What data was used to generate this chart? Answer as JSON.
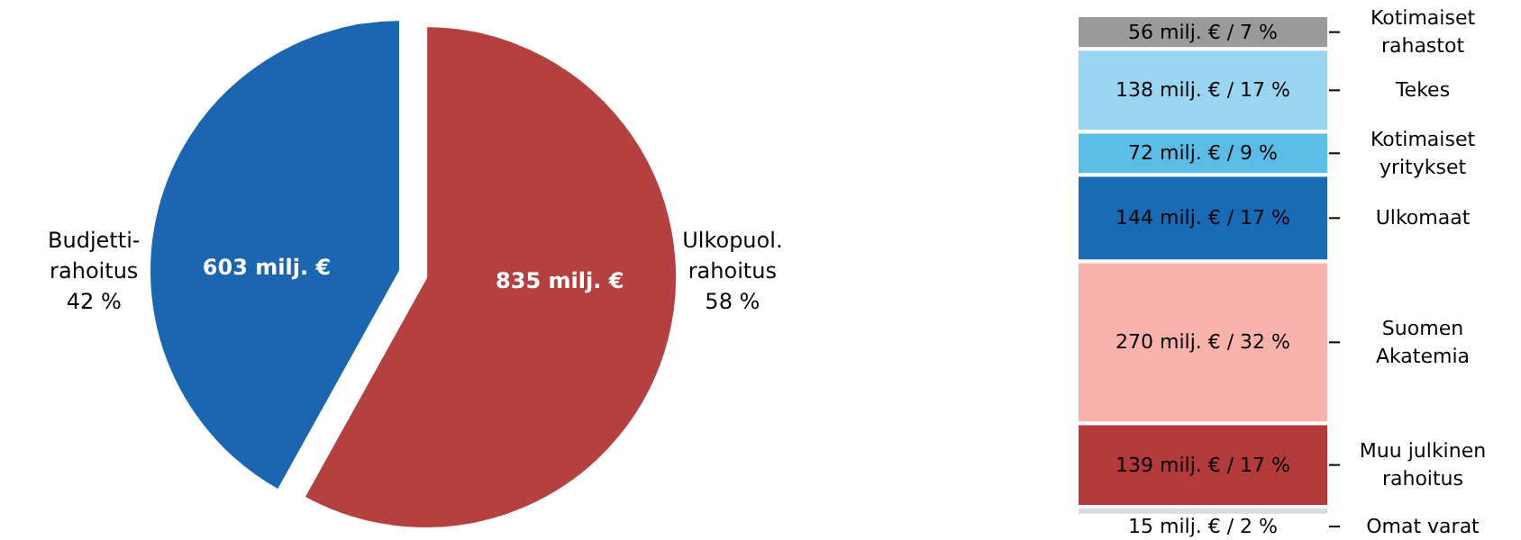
{
  "chart_data": [
    {
      "type": "pie",
      "categories": [
        "Budjetti-\nrahoitus\n42 %",
        "Ulkopuol.\nrahoitus\n58 %"
      ],
      "values": [
        603,
        835
      ],
      "colors": [
        "#1a66b0",
        "#b54040"
      ],
      "value_labels": [
        "603 milj. €",
        "835 milj. €"
      ]
    },
    {
      "type": "bar",
      "stacked": true,
      "categories": [
        null
      ],
      "series": [
        {
          "name": "Omat varat",
          "color": "#dcdcdc",
          "values": [
            15
          ],
          "value_labels": [
            "15 milj. € / 2 %"
          ]
        },
        {
          "name": "Muu julkinen\nrahoitus",
          "color": "#b23a3a",
          "values": [
            139
          ],
          "value_labels": [
            "139 milj. € / 17 %"
          ]
        },
        {
          "name": "Suomen\nAkatemia",
          "color": "#f8b2ab",
          "values": [
            270
          ],
          "value_labels": [
            "270 milj. € / 32 %"
          ]
        },
        {
          "name": "Ulkomaat",
          "color": "#1a6bb5",
          "values": [
            144
          ],
          "value_labels": [
            "144 milj. € / 17 %"
          ]
        },
        {
          "name": "Kotimaiset\nyritykset",
          "color": "#5bbde6",
          "values": [
            72
          ],
          "value_labels": [
            "72 milj. € / 9 %"
          ]
        },
        {
          "name": "Tekes",
          "color": "#99d5f0",
          "values": [
            138
          ],
          "value_labels": [
            "138 milj. € / 17 %"
          ]
        },
        {
          "name": "Kotimaiset\nrahastot",
          "color": "#9a9a9a",
          "values": [
            56
          ],
          "value_labels": [
            "56 milj. € / 7 %"
          ]
        }
      ]
    }
  ]
}
